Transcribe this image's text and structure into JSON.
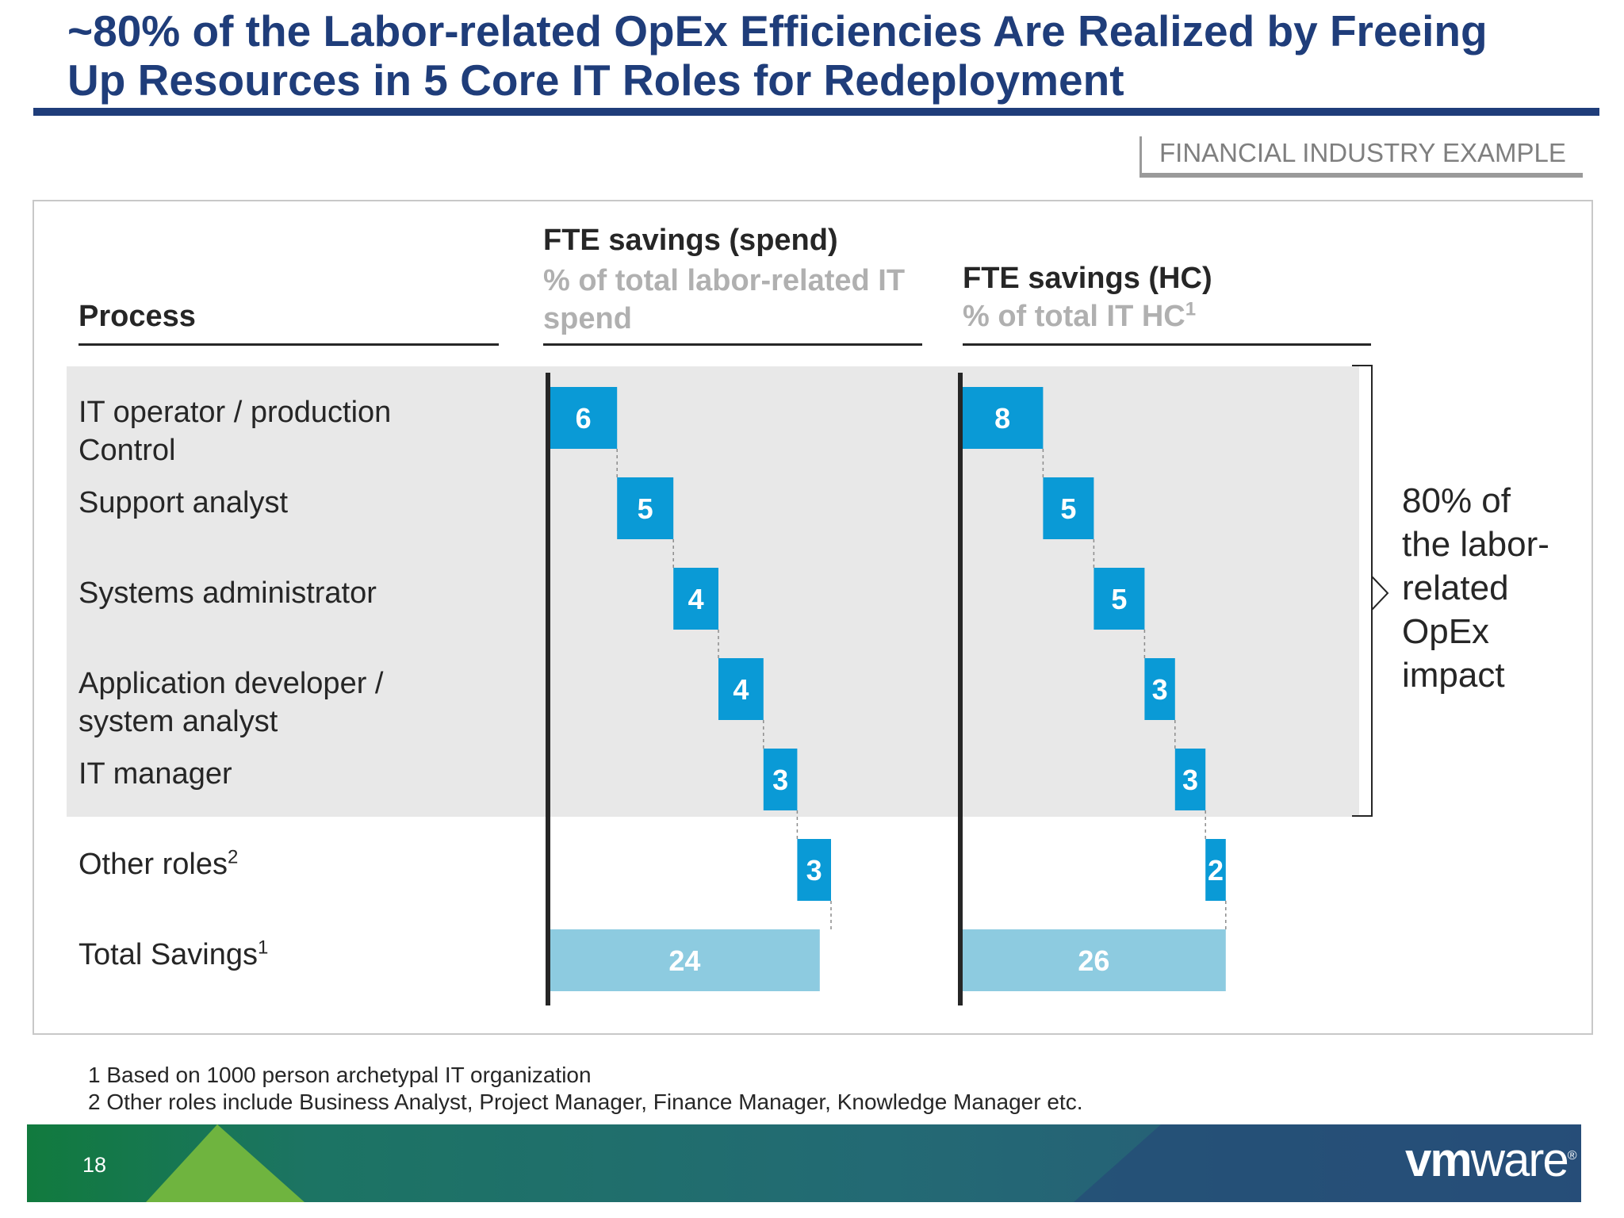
{
  "title_line1": "~80% of the Labor-related OpEx Efficiencies Are Realized by Freeing",
  "title_line2": "Up Resources in 5 Core IT Roles for Redeployment",
  "tag": "FINANCIAL INDUSTRY EXAMPLE",
  "process_header": "Process",
  "rows": [
    {
      "line1": "IT operator / production",
      "line2": "Control"
    },
    {
      "line1": "Support analyst",
      "line2": ""
    },
    {
      "line1": "Systems administrator",
      "line2": ""
    },
    {
      "line1": "Application developer /",
      "line2": "system analyst"
    },
    {
      "line1": "IT manager",
      "line2": ""
    },
    {
      "line1": "Other roles",
      "sup": "2"
    },
    {
      "line1": "Total Savings",
      "sup": "1"
    }
  ],
  "chart_data": [
    {
      "type": "bar",
      "title": "FTE savings (spend)",
      "subtitle_line1": "% of total labor-related IT",
      "subtitle_line2": "spend",
      "categories": [
        "IT operator / production Control",
        "Support analyst",
        "Systems administrator",
        "Application developer / system analyst",
        "IT manager",
        "Other roles",
        "Total Savings"
      ],
      "values": [
        6,
        5,
        4,
        4,
        3,
        3,
        24
      ]
    },
    {
      "type": "bar",
      "title": "FTE savings (HC)",
      "subtitle": "% of total IT HC",
      "subtitle_sup": "1",
      "categories": [
        "IT operator / production Control",
        "Support analyst",
        "Systems administrator",
        "Application developer / system analyst",
        "IT manager",
        "Other roles",
        "Total Savings"
      ],
      "values": [
        8,
        5,
        5,
        3,
        3,
        2,
        26
      ]
    }
  ],
  "impact": [
    "80% of",
    "the labor-",
    "related",
    "OpEx",
    "impact"
  ],
  "footnotes": [
    "1 Based on 1000 person archetypal IT organization",
    "2 Other roles include Business Analyst, Project Manager, Finance Manager, Knowledge Manager etc."
  ],
  "page_number": "18",
  "logo": {
    "bold": "vm",
    "normal": "ware",
    "mark": "®"
  },
  "colors": {
    "title": "#1f3d7a",
    "bar": "#0a9ad6",
    "total": "#8dcbe0",
    "shade": "#e8e8e8"
  }
}
